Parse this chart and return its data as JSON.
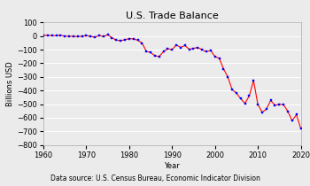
{
  "title": "U.S. Trade Balance",
  "xlabel": "Year",
  "ylabel": "Billions USD",
  "caption": "Data source: U.S. Census Bureau, Economic Indicator Division",
  "years": [
    1960,
    1961,
    1962,
    1963,
    1964,
    1965,
    1966,
    1967,
    1968,
    1969,
    1970,
    1971,
    1972,
    1973,
    1974,
    1975,
    1976,
    1977,
    1978,
    1979,
    1980,
    1981,
    1982,
    1983,
    1984,
    1985,
    1986,
    1987,
    1988,
    1989,
    1990,
    1991,
    1992,
    1993,
    1994,
    1995,
    1996,
    1997,
    1998,
    1999,
    2000,
    2001,
    2002,
    2003,
    2004,
    2005,
    2006,
    2007,
    2008,
    2009,
    2010,
    2011,
    2012,
    2013,
    2014,
    2015,
    2016,
    2017,
    2018,
    2019,
    2020
  ],
  "values": [
    4,
    5,
    2,
    2,
    5,
    -1,
    -2,
    -3,
    -5,
    -2,
    2,
    -3,
    -9,
    4,
    -5,
    9,
    -13,
    -31,
    -34,
    -28,
    -19,
    -22,
    -31,
    -52,
    -112,
    -122,
    -145,
    -151,
    -115,
    -93,
    -101,
    -66,
    -84,
    -70,
    -98,
    -91,
    -84,
    -101,
    -116,
    -105,
    -152,
    -163,
    -241,
    -300,
    -393,
    -419,
    -460,
    -494,
    -440,
    -326,
    -500,
    -560,
    -536,
    -473,
    -508,
    -500,
    -504,
    -552,
    -622,
    -577,
    -677
  ],
  "line_color": "red",
  "marker_color": "blue",
  "marker": "s",
  "marker_size": 2,
  "ylim": [
    -800,
    100
  ],
  "xlim": [
    1960,
    2020
  ],
  "yticks": [
    100,
    0,
    -100,
    -200,
    -300,
    -400,
    -500,
    -600,
    -700,
    -800
  ],
  "xticks": [
    1960,
    1970,
    1980,
    1990,
    2000,
    2010,
    2020
  ],
  "bg_color": "#ebebeb",
  "grid_color": "white",
  "title_fontsize": 8,
  "label_fontsize": 6,
  "tick_fontsize": 6,
  "caption_fontsize": 5.5
}
